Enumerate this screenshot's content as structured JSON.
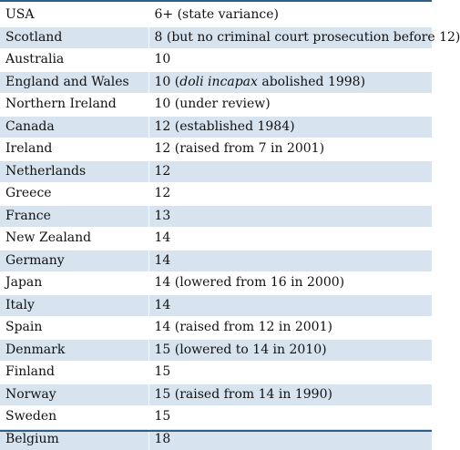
{
  "table": {
    "rows": [
      {
        "country": "USA",
        "age": "6+ (state variance)"
      },
      {
        "country": "Scotland",
        "age": "8 (but no criminal court prosecution before 12)"
      },
      {
        "country": "Australia",
        "age": "10"
      },
      {
        "country": "England and Wales",
        "age_pre": "10 (",
        "age_italic": "doli incapax",
        "age_post": " abolished 1998)"
      },
      {
        "country": "Northern Ireland",
        "age": "10 (under review)"
      },
      {
        "country": "Canada",
        "age": "12 (established 1984)"
      },
      {
        "country": "Ireland",
        "age": "12 (raised from 7 in 2001)"
      },
      {
        "country": "Netherlands",
        "age": "12"
      },
      {
        "country": "Greece",
        "age": "12"
      },
      {
        "country": "France",
        "age": "13"
      },
      {
        "country": "New Zealand",
        "age": "14"
      },
      {
        "country": "Germany",
        "age": "14"
      },
      {
        "country": "Japan",
        "age": "14 (lowered from 16 in 2000)"
      },
      {
        "country": "Italy",
        "age": "14"
      },
      {
        "country": "Spain",
        "age": "14 (raised from 12 in 2001)"
      },
      {
        "country": "Denmark",
        "age": "15 (lowered to 14 in 2010)"
      },
      {
        "country": "Finland",
        "age": "15"
      },
      {
        "country": "Norway",
        "age": "15 (raised from 14 in 1990)"
      },
      {
        "country": "Sweden",
        "age": "15"
      },
      {
        "country": "Belgium",
        "age": "18"
      }
    ]
  },
  "colors": {
    "stripe": "#d7e3ef",
    "rule": "#2e5f8a"
  }
}
